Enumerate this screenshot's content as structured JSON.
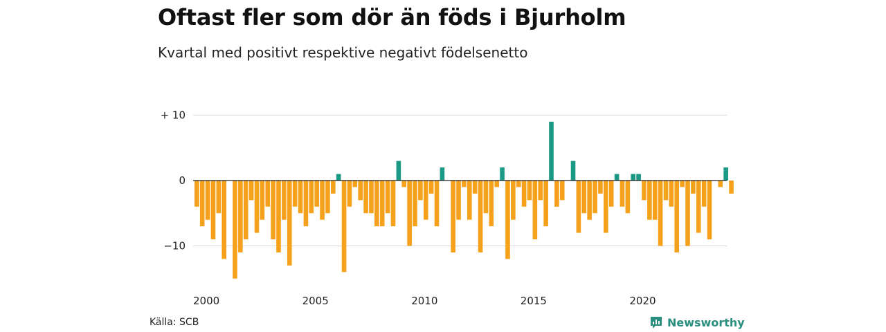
{
  "title": "Oftast fler som dör än föds i Bjurholm",
  "subtitle": "Kvartal med positivt respektive negativt födelsenetto",
  "source": "Källa: SCB",
  "brand": "Newsworthy",
  "colors": {
    "positive": "#1a9985",
    "negative": "#f5a11c",
    "grid": "#dddddd",
    "zero_line": "#222222",
    "brand": "#2a8f7f"
  },
  "chart_data": {
    "type": "bar",
    "title": "Oftast fler som dör än föds i Bjurholm",
    "subtitle": "Kvartal med positivt respektive negativt födelsenetto",
    "xlabel": "",
    "ylabel": "",
    "ylim": [
      -16,
      10
    ],
    "y_ticks": [
      {
        "value": 10,
        "label": "+ 10"
      },
      {
        "value": 0,
        "label": "0"
      },
      {
        "value": -10,
        "label": "−10"
      }
    ],
    "x_ticks": [
      {
        "label": "2000",
        "quarter_index": 0
      },
      {
        "label": "2005",
        "quarter_index": 20
      },
      {
        "label": "2010",
        "quarter_index": 40
      },
      {
        "label": "2015",
        "quarter_index": 60
      },
      {
        "label": "2020",
        "quarter_index": 80
      }
    ],
    "start": "2000 Q1",
    "frequency": "quarterly",
    "grid": true,
    "legend": "none",
    "values": [
      -4,
      -7,
      -6,
      -9,
      -5,
      -12,
      0,
      -15,
      -11,
      -9,
      -3,
      -8,
      -6,
      -4,
      -9,
      -11,
      -6,
      -13,
      -4,
      -5,
      -7,
      -5,
      -4,
      -6,
      -5,
      -2,
      1,
      -14,
      -4,
      -1,
      -3,
      -5,
      -5,
      -7,
      -7,
      -5,
      -7,
      3,
      -1,
      -10,
      -7,
      -3,
      -6,
      -2,
      -7,
      2,
      0,
      -11,
      -6,
      -1,
      -6,
      -2,
      -11,
      -5,
      -7,
      -1,
      2,
      -12,
      -6,
      -1,
      -4,
      -3,
      -9,
      -3,
      -7,
      9,
      -4,
      -3,
      0,
      3,
      -8,
      -5,
      -6,
      -5,
      -2,
      -8,
      -4,
      1,
      -4,
      -5,
      1,
      1,
      -3,
      -6,
      -6,
      -10,
      -3,
      -4,
      -11,
      -1,
      -10,
      -2,
      -8,
      -4,
      -9,
      0,
      -1,
      2,
      -2
    ]
  }
}
